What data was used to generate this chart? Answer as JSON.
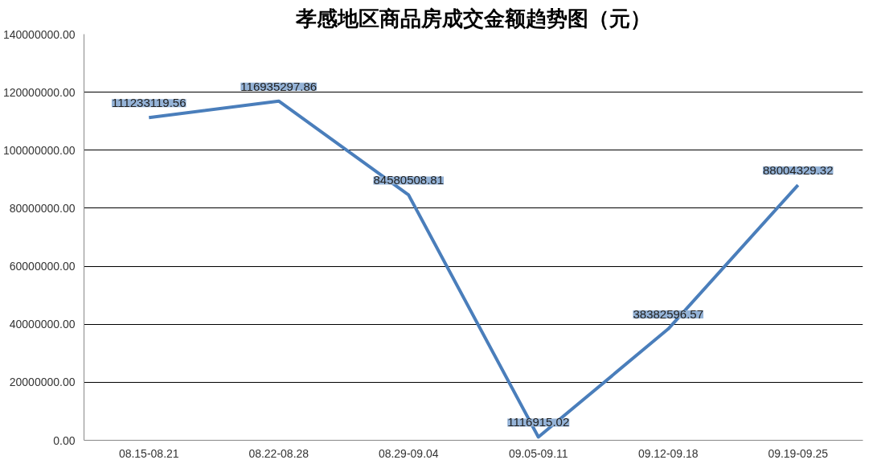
{
  "chart_data": {
    "type": "line",
    "title": "孝感地区商品房成交金额趋势图（元）",
    "categories": [
      "08.15-08.21",
      "08.22-08.28",
      "08.29-09.04",
      "09.05-09.11",
      "09.12-09.18",
      "09.19-09.25"
    ],
    "values": [
      111233119.56,
      116935297.86,
      84580508.81,
      1116915.02,
      38382596.57,
      88004329.32
    ],
    "value_labels": [
      "111233119.56",
      "116935297.86",
      "84580508.81",
      "1116915.02",
      "38382596.57",
      "88004329.32"
    ],
    "color": "#4a7ebb",
    "ylim": [
      0,
      140000000
    ],
    "yticks": [
      {
        "value": 0,
        "label": "0.00"
      },
      {
        "value": 20000000,
        "label": "20000000.00"
      },
      {
        "value": 40000000,
        "label": "40000000.00"
      },
      {
        "value": 60000000,
        "label": "60000000.00"
      },
      {
        "value": 80000000,
        "label": "80000000.00"
      },
      {
        "value": 100000000,
        "label": "100000000.00"
      },
      {
        "value": 120000000,
        "label": "120000000.00"
      },
      {
        "value": 140000000,
        "label": "140000000.00"
      }
    ],
    "grid": "y",
    "marker": "none",
    "line_style": "solid"
  }
}
